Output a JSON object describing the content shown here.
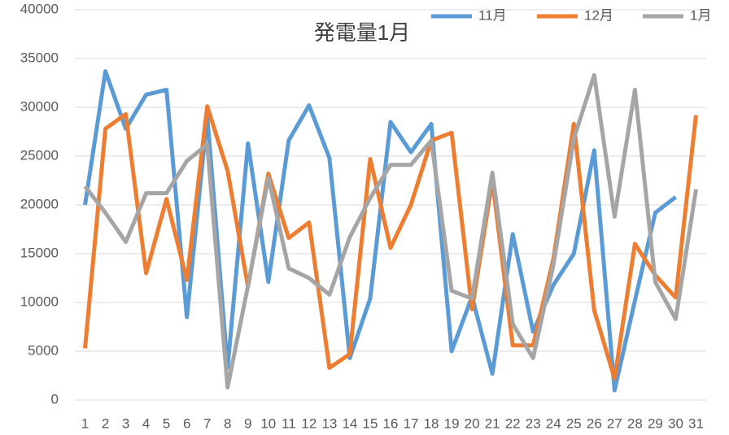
{
  "chart_data": {
    "type": "line",
    "title": "発電量1月",
    "categories": [
      "1",
      "2",
      "3",
      "4",
      "5",
      "6",
      "7",
      "8",
      "9",
      "10",
      "11",
      "12",
      "13",
      "14",
      "15",
      "16",
      "17",
      "18",
      "19",
      "20",
      "21",
      "22",
      "23",
      "24",
      "25",
      "26",
      "27",
      "28",
      "29",
      "30",
      "31"
    ],
    "series": [
      {
        "name": "11月",
        "color": "#5b9bd5",
        "values": [
          20000,
          33700,
          27800,
          31300,
          31800,
          8500,
          29100,
          3300,
          26300,
          12100,
          26600,
          30200,
          24800,
          4300,
          10400,
          28500,
          25400,
          28300,
          5000,
          10600,
          2700,
          17000,
          7000,
          11800,
          15000,
          25600,
          1000,
          10200,
          19200,
          20800,
          null
        ]
      },
      {
        "name": "12月",
        "color": "#ed7d31",
        "values": [
          5300,
          27800,
          29300,
          13000,
          20600,
          12300,
          30100,
          23500,
          11600,
          23200,
          16600,
          18200,
          3300,
          4700,
          24700,
          15600,
          20000,
          26600,
          27400,
          9300,
          22500,
          5600,
          5600,
          14500,
          28300,
          9200,
          2200,
          16000,
          12800,
          10500,
          29200
        ]
      },
      {
        "name": "1月",
        "color": "#a5a5a5",
        "values": [
          21900,
          19200,
          16200,
          21200,
          21200,
          24500,
          26200,
          1300,
          11700,
          22800,
          13500,
          12500,
          10800,
          16700,
          20700,
          24100,
          24100,
          26600,
          11200,
          10400,
          23300,
          7800,
          4300,
          13900,
          26800,
          33300,
          18800,
          31800,
          12100,
          8300,
          21600
        ]
      }
    ],
    "ylim": [
      0,
      40000
    ],
    "yticks": [
      0,
      5000,
      10000,
      15000,
      20000,
      25000,
      30000,
      35000,
      40000
    ],
    "grid": true,
    "legend": "top-right"
  }
}
